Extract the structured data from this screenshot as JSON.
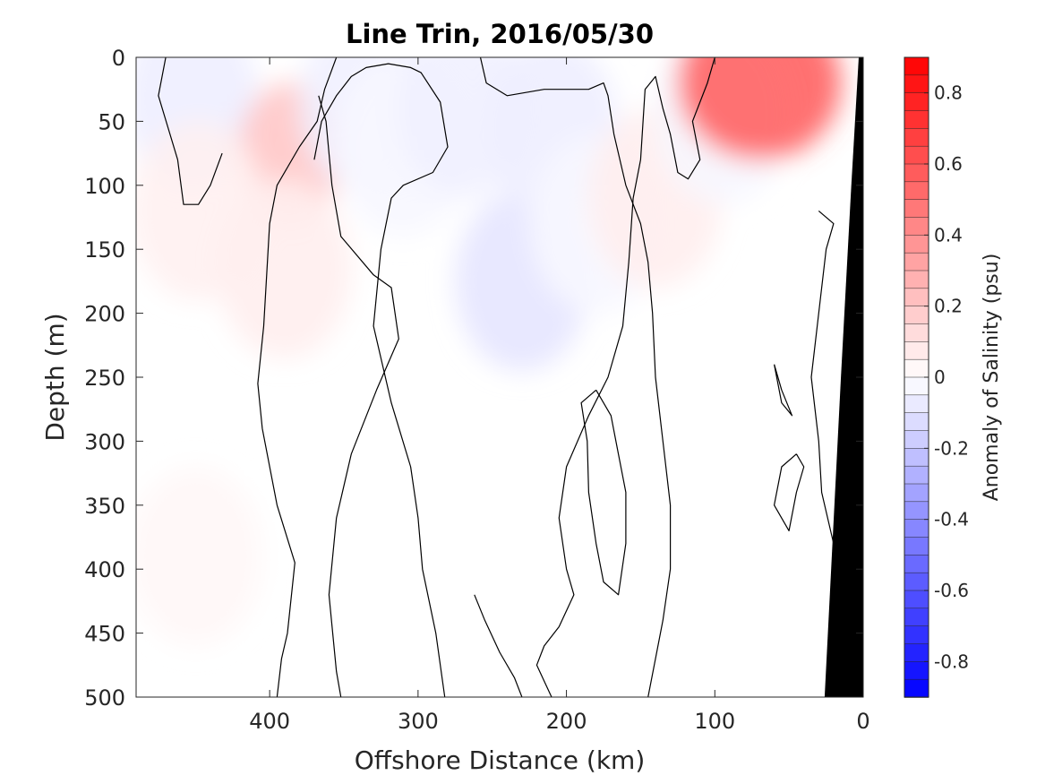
{
  "chart_data": {
    "type": "heatmap",
    "title": "Line Trin, 2016/05/30",
    "xlabel": "Offshore Distance (km)",
    "ylabel": "Depth (m)",
    "xlim": [
      490,
      0
    ],
    "x_reversed": true,
    "ylim": [
      0,
      500
    ],
    "y_reversed": true,
    "x_ticks": [
      400,
      300,
      200,
      100,
      0
    ],
    "x_tick_labels": [
      "400",
      "300",
      "200",
      "100",
      "0"
    ],
    "y_ticks": [
      0,
      50,
      100,
      150,
      200,
      250,
      300,
      350,
      400,
      450,
      500
    ],
    "y_tick_labels": [
      "0",
      "50",
      "100",
      "150",
      "200",
      "250",
      "300",
      "350",
      "400",
      "450",
      "500"
    ],
    "grid": false,
    "colorbar": {
      "label": "Anomaly of Salinity (psu)",
      "range": [
        -0.9,
        0.9
      ],
      "level_step": 0.05,
      "ticks": [
        0.8,
        0.6,
        0.4,
        0.2,
        0,
        -0.2,
        -0.4,
        -0.6,
        -0.8
      ],
      "tick_labels": [
        "0.8",
        "0.6",
        "0.4",
        "0.2",
        "0",
        "-0.2",
        "-0.4",
        "-0.6",
        "-0.8"
      ],
      "positive_color": "#ff0000",
      "negative_color": "#0000ff",
      "zero_color": "#ffffff"
    },
    "anomaly_blobs": [
      {
        "x": 453,
        "depth": 32,
        "value": -0.06
      },
      {
        "x": 386,
        "depth": 75,
        "value": 0.2
      },
      {
        "x": 448,
        "depth": 120,
        "value": 0.05
      },
      {
        "x": 390,
        "depth": 165,
        "value": 0.06
      },
      {
        "x": 335,
        "depth": 35,
        "value": -0.05
      },
      {
        "x": 310,
        "depth": 70,
        "value": -0.03
      },
      {
        "x": 270,
        "depth": 40,
        "value": -0.05
      },
      {
        "x": 230,
        "depth": 175,
        "value": -0.09
      },
      {
        "x": 210,
        "depth": 55,
        "value": -0.06
      },
      {
        "x": 180,
        "depth": 130,
        "value": -0.03
      },
      {
        "x": 140,
        "depth": 110,
        "value": 0.06
      },
      {
        "x": 95,
        "depth": 45,
        "value": -0.03
      },
      {
        "x": 70,
        "depth": 20,
        "value": 0.55
      },
      {
        "x": 450,
        "depth": 390,
        "value": 0.03
      }
    ],
    "bathymetry": {
      "fill_color": "#000000",
      "points": [
        [
          3,
          0
        ],
        [
          0,
          0
        ],
        [
          0,
          500
        ],
        [
          26,
          500
        ],
        [
          15,
          250
        ],
        [
          8,
          100
        ],
        [
          3,
          0
        ]
      ]
    },
    "zero_contours": [
      [
        [
          470,
          0
        ],
        [
          475,
          30
        ],
        [
          462,
          80
        ],
        [
          458,
          115
        ],
        [
          448,
          115
        ],
        [
          440,
          100
        ],
        [
          432,
          75
        ]
      ],
      [
        [
          370,
          80
        ],
        [
          365,
          50
        ],
        [
          355,
          30
        ],
        [
          345,
          15
        ],
        [
          335,
          8
        ],
        [
          320,
          5
        ],
        [
          305,
          8
        ],
        [
          298,
          12
        ],
        [
          285,
          35
        ],
        [
          280,
          70
        ],
        [
          290,
          90
        ],
        [
          310,
          100
        ],
        [
          318,
          110
        ],
        [
          325,
          150
        ],
        [
          330,
          210
        ],
        [
          318,
          270
        ],
        [
          305,
          320
        ],
        [
          300,
          360
        ],
        [
          297,
          400
        ],
        [
          288,
          450
        ],
        [
          282,
          500
        ]
      ],
      [
        [
          367,
          30
        ],
        [
          362,
          50
        ],
        [
          358,
          100
        ],
        [
          352,
          140
        ],
        [
          330,
          170
        ],
        [
          318,
          180
        ],
        [
          313,
          220
        ],
        [
          328,
          260
        ],
        [
          345,
          310
        ],
        [
          355,
          360
        ],
        [
          360,
          420
        ],
        [
          355,
          480
        ],
        [
          352,
          500
        ]
      ],
      [
        [
          355,
          0
        ],
        [
          363,
          25
        ],
        [
          368,
          50
        ],
        [
          380,
          70
        ],
        [
          395,
          100
        ],
        [
          400,
          130
        ],
        [
          402,
          170
        ],
        [
          404,
          210
        ],
        [
          408,
          255
        ],
        [
          405,
          290
        ],
        [
          395,
          350
        ],
        [
          383,
          395
        ],
        [
          388,
          450
        ],
        [
          392,
          470
        ],
        [
          395,
          500
        ]
      ],
      [
        [
          258,
          0
        ],
        [
          254,
          20
        ],
        [
          240,
          30
        ],
        [
          215,
          25
        ],
        [
          185,
          25
        ],
        [
          175,
          20
        ],
        [
          172,
          30
        ],
        [
          168,
          60
        ],
        [
          160,
          100
        ],
        [
          150,
          130
        ],
        [
          145,
          160
        ],
        [
          142,
          200
        ],
        [
          140,
          250
        ],
        [
          135,
          300
        ],
        [
          130,
          350
        ],
        [
          130,
          400
        ],
        [
          135,
          440
        ],
        [
          140,
          470
        ],
        [
          145,
          500
        ]
      ],
      [
        [
          100,
          0
        ],
        [
          105,
          20
        ],
        [
          115,
          50
        ],
        [
          110,
          80
        ],
        [
          118,
          95
        ],
        [
          125,
          90
        ],
        [
          130,
          60
        ],
        [
          135,
          40
        ],
        [
          140,
          15
        ],
        [
          147,
          25
        ],
        [
          150,
          80
        ],
        [
          155,
          110
        ],
        [
          158,
          160
        ],
        [
          162,
          210
        ],
        [
          172,
          250
        ],
        [
          185,
          280
        ],
        [
          200,
          320
        ],
        [
          205,
          360
        ],
        [
          200,
          400
        ],
        [
          195,
          420
        ],
        [
          205,
          445
        ],
        [
          215,
          460
        ],
        [
          220,
          475
        ],
        [
          210,
          500
        ]
      ],
      [
        [
          262,
          420
        ],
        [
          255,
          440
        ],
        [
          245,
          465
        ],
        [
          235,
          485
        ],
        [
          230,
          500
        ]
      ],
      [
        [
          180,
          260
        ],
        [
          170,
          280
        ],
        [
          165,
          310
        ],
        [
          160,
          340
        ],
        [
          160,
          380
        ],
        [
          165,
          420
        ],
        [
          175,
          410
        ],
        [
          180,
          380
        ],
        [
          185,
          340
        ],
        [
          186,
          300
        ],
        [
          190,
          270
        ],
        [
          180,
          260
        ]
      ],
      [
        [
          60,
          240
        ],
        [
          55,
          270
        ],
        [
          48,
          280
        ],
        [
          55,
          260
        ],
        [
          60,
          240
        ]
      ],
      [
        [
          45,
          310
        ],
        [
          55,
          320
        ],
        [
          60,
          350
        ],
        [
          50,
          370
        ],
        [
          45,
          340
        ],
        [
          40,
          320
        ],
        [
          45,
          310
        ]
      ],
      [
        [
          30,
          120
        ],
        [
          20,
          130
        ],
        [
          25,
          150
        ],
        [
          30,
          200
        ],
        [
          35,
          250
        ],
        [
          30,
          300
        ],
        [
          28,
          340
        ],
        [
          20,
          380
        ]
      ]
    ]
  }
}
